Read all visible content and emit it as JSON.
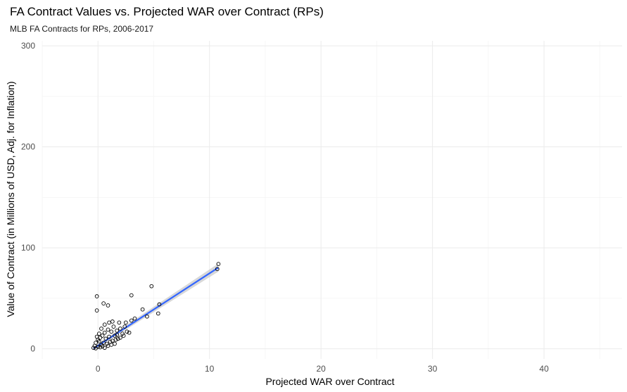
{
  "title": "FA Contract Values vs. Projected WAR over Contract (RPs)",
  "subtitle": "MLB FA Contracts for RPs, 2006-2017",
  "chart_data": {
    "type": "scatter",
    "title": "FA Contract Values vs. Projected WAR over Contract (RPs)",
    "subtitle": "MLB FA Contracts for RPs, 2006-2017",
    "xlabel": "Projected WAR over Contract",
    "ylabel": "Value of Contract (in Millions of USD, Adj. for Inflation)",
    "xlim": [
      -5,
      47
    ],
    "ylim": [
      -10,
      305
    ],
    "x_ticks": [
      0,
      10,
      20,
      30,
      40
    ],
    "y_ticks": [
      0,
      100,
      200,
      300
    ],
    "grid": true,
    "colors": {
      "points": "#000000",
      "fit_line": "#3366ff",
      "confidence_band": "#bebebe"
    },
    "fit": {
      "method": "linear",
      "x": [
        -0.4,
        10.8
      ],
      "y": [
        0.3,
        80.5
      ],
      "band_halfwidth_at_ends": [
        1.5,
        4
      ]
    },
    "points": [
      {
        "x": 10.8,
        "y": 84
      },
      {
        "x": 10.7,
        "y": 79
      },
      {
        "x": 4.8,
        "y": 62
      },
      {
        "x": 3.0,
        "y": 53
      },
      {
        "x": -0.1,
        "y": 52
      },
      {
        "x": 0.5,
        "y": 45
      },
      {
        "x": 0.9,
        "y": 43
      },
      {
        "x": -0.1,
        "y": 38
      },
      {
        "x": 4.0,
        "y": 39
      },
      {
        "x": 5.5,
        "y": 44
      },
      {
        "x": 5.4,
        "y": 35
      },
      {
        "x": 4.4,
        "y": 32
      },
      {
        "x": 3.3,
        "y": 30
      },
      {
        "x": 3.0,
        "y": 28
      },
      {
        "x": 2.5,
        "y": 26
      },
      {
        "x": 2.4,
        "y": 22
      },
      {
        "x": 1.9,
        "y": 26
      },
      {
        "x": 2.0,
        "y": 20
      },
      {
        "x": 1.7,
        "y": 18
      },
      {
        "x": 1.4,
        "y": 22
      },
      {
        "x": 1.2,
        "y": 17
      },
      {
        "x": 0.9,
        "y": 19
      },
      {
        "x": 0.6,
        "y": 16
      },
      {
        "x": 0.4,
        "y": 13
      },
      {
        "x": 0.1,
        "y": 15
      },
      {
        "x": 0.2,
        "y": 11
      },
      {
        "x": 0.7,
        "y": 10
      },
      {
        "x": 0.0,
        "y": 9
      },
      {
        "x": 1.0,
        "y": 12
      },
      {
        "x": 1.5,
        "y": 13
      },
      {
        "x": 2.2,
        "y": 15
      },
      {
        "x": 2.6,
        "y": 17
      },
      {
        "x": 1.8,
        "y": 10
      },
      {
        "x": -0.2,
        "y": 6
      },
      {
        "x": -0.3,
        "y": 3
      },
      {
        "x": -0.4,
        "y": 1
      },
      {
        "x": -0.2,
        "y": 0.5
      },
      {
        "x": 0.0,
        "y": 2
      },
      {
        "x": 0.3,
        "y": 4
      },
      {
        "x": 0.5,
        "y": 6
      },
      {
        "x": 0.8,
        "y": 5
      },
      {
        "x": 1.1,
        "y": 7
      },
      {
        "x": 1.3,
        "y": 8
      },
      {
        "x": 1.6,
        "y": 9
      },
      {
        "x": 2.0,
        "y": 11
      },
      {
        "x": 0.2,
        "y": 1.5
      },
      {
        "x": 0.4,
        "y": 2.5
      },
      {
        "x": 0.6,
        "y": 1
      },
      {
        "x": 0.9,
        "y": 3
      },
      {
        "x": 1.2,
        "y": 4
      },
      {
        "x": 1.5,
        "y": 5
      },
      {
        "x": 0.1,
        "y": 7.5
      },
      {
        "x": -0.1,
        "y": 12
      },
      {
        "x": 0.3,
        "y": 20
      },
      {
        "x": 0.6,
        "y": 24
      },
      {
        "x": 1.0,
        "y": 26
      },
      {
        "x": 1.3,
        "y": 27
      },
      {
        "x": 1.7,
        "y": 14
      },
      {
        "x": 2.3,
        "y": 13
      },
      {
        "x": 2.8,
        "y": 16
      }
    ]
  }
}
